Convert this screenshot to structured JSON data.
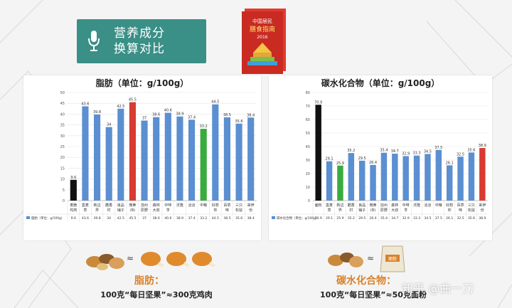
{
  "header": {
    "title_line1": "营养成分",
    "title_line2": "换算对比"
  },
  "colors": {
    "blue": "#5b8fd1",
    "black": "#111111",
    "red": "#d93a32",
    "green": "#3aab3f",
    "teal": "#3a8f86"
  },
  "chart_data": [
    {
      "type": "bar",
      "title": "脂肪（单位：g/100g）",
      "categories": [
        "麦脆鸡肉",
        "盒麦草",
        "新边界",
        "酷香村",
        "良品铺子",
        "微鼻(B)",
        "加州原野",
        "森林大叔",
        "中啡亨",
        "沃隆",
        "洽洽",
        "中粮",
        "好想你",
        "百草味",
        "三只松鼠",
        "来伊份"
      ],
      "values": [
        9.6,
        43.6,
        39.8,
        34,
        42.5,
        45.5,
        37,
        38.6,
        40.6,
        38.9,
        37.4,
        33.2,
        44.5,
        38.5,
        35.6,
        38.4
      ],
      "highlight": {
        "0": "black",
        "5": "red",
        "11": "green"
      },
      "ylim": [
        0,
        50
      ],
      "yticks": [
        0,
        5,
        10,
        15,
        20,
        25,
        30,
        35,
        40,
        45,
        50
      ],
      "legend": "脂肪（单位：g/100g）",
      "table_row": [
        "9.6",
        "43.6",
        "39.8",
        "34",
        "42.5",
        "45.5",
        "37",
        "38.6",
        "40.6",
        "38.9",
        "37.4",
        "33.2",
        "44.5",
        "38.5",
        "35.6",
        "38.4"
      ]
    },
    {
      "type": "bar",
      "title": "碳水化合物（单位：g/100g）",
      "categories": [
        "面粉",
        "盒麦草",
        "新边界",
        "酷香村",
        "良品铺子",
        "微鼻(B)",
        "加州原野",
        "森林大叔",
        "中啡亨",
        "沃隆",
        "洽洽",
        "中粮",
        "好想你",
        "百草味",
        "三只松鼠",
        "来伊份"
      ],
      "values": [
        70.9,
        29.1,
        25.9,
        35.2,
        29.5,
        26.4,
        35.4,
        34.7,
        32.9,
        33.3,
        34.5,
        37.5,
        26.1,
        32.5,
        35.6,
        38.9
      ],
      "highlight": {
        "0": "black",
        "2": "green",
        "15": "red"
      },
      "ylim": [
        0,
        80
      ],
      "yticks": [
        0,
        10,
        20,
        30,
        40,
        50,
        60,
        70,
        80
      ],
      "legend": "碳水化合物（单位：g/100g）",
      "table_row": [
        "70.9",
        "29.1",
        "25.9",
        "35.2",
        "29.5",
        "26.4",
        "35.4",
        "34.7",
        "32.9",
        "33.3",
        "34.5",
        "37.5",
        "26.1",
        "32.5",
        "35.6",
        "38.9"
      ]
    }
  ],
  "captions": {
    "fat_title": "脂肪：",
    "fat_sub": "100克“每日坚果”≈300克鸡肉",
    "carb_title": "碳水化合物：",
    "carb_sub": "100克“每日坚果”≈50克面粉",
    "approx": "≈",
    "flour_bag_label": "面粉"
  },
  "book": {
    "title": "中国居民膳食指南",
    "year": "2016"
  },
  "watermark": "知乎 @曲一刀"
}
